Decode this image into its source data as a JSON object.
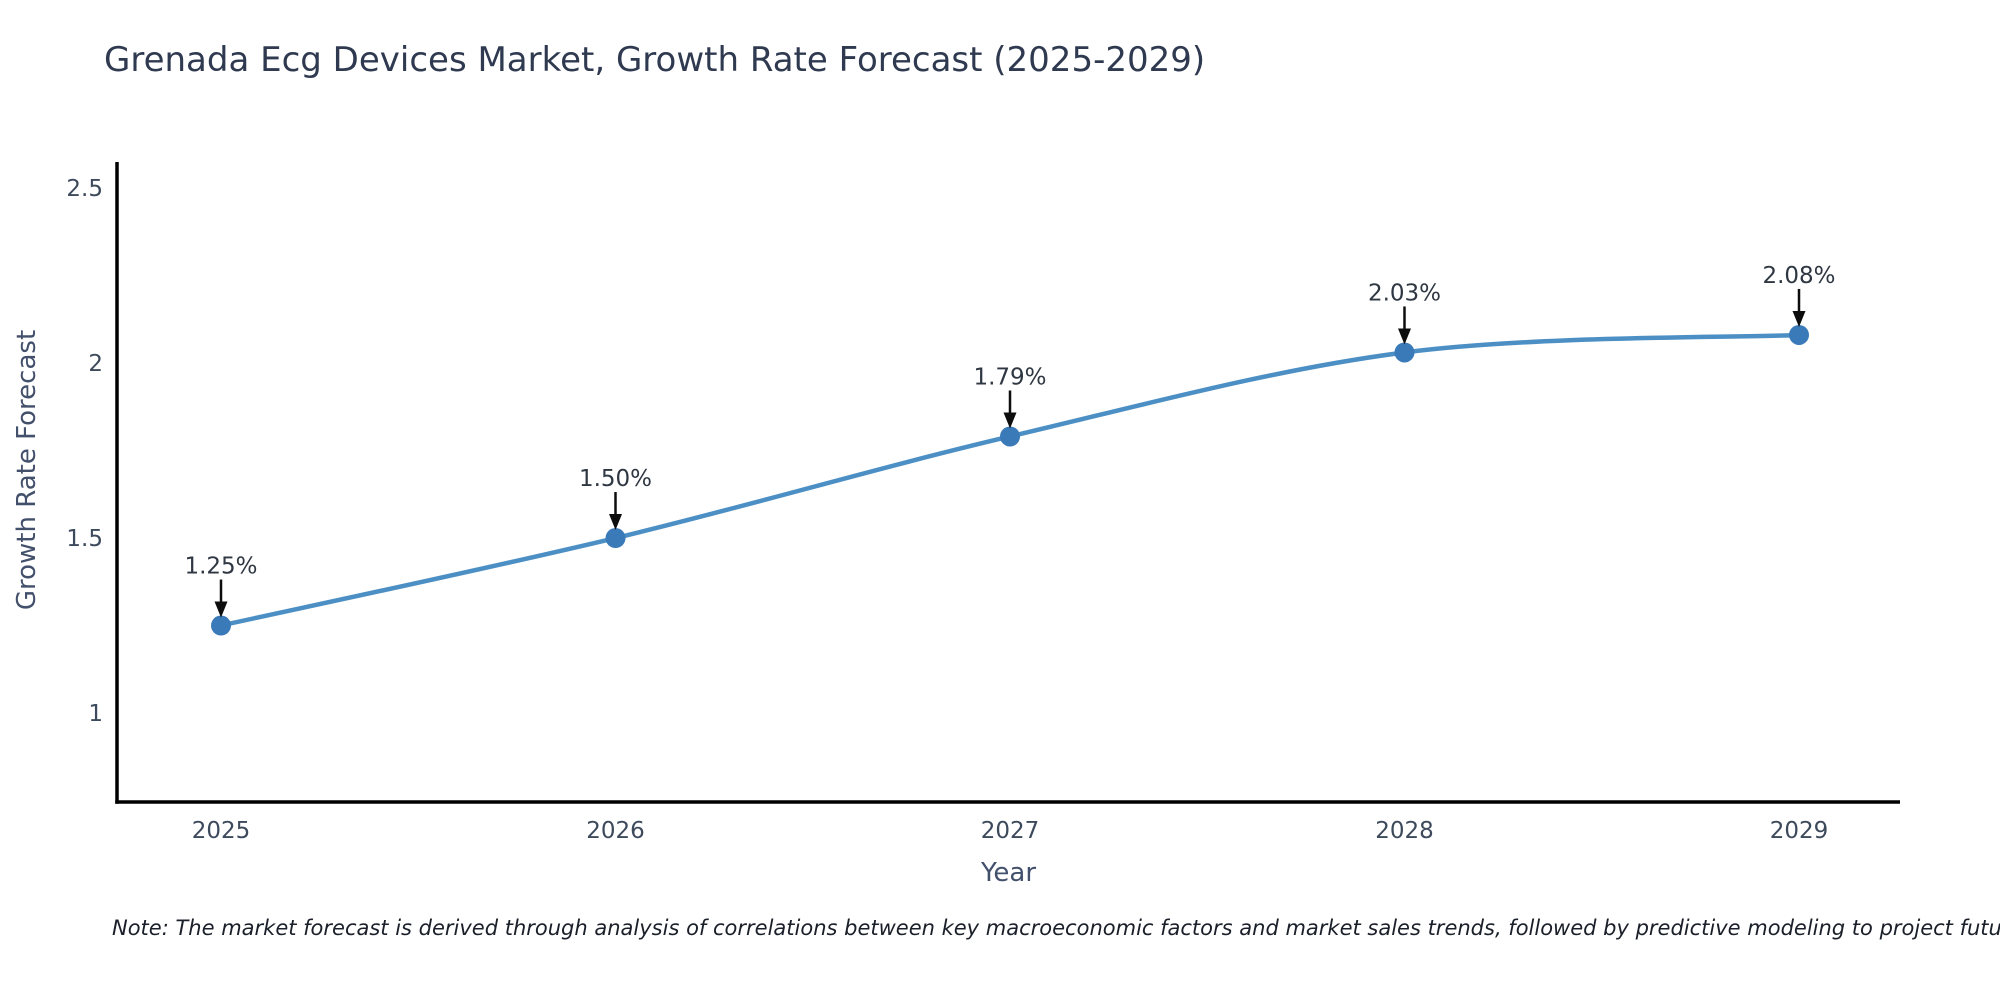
{
  "header": {
    "title": "Grenada Ecg Devices Market, Growth Rate Forecast (2025-2029)"
  },
  "footer": {
    "note": "Note: The market forecast is derived through analysis of correlations between key macroeconomic factors and market sales trends, followed by predictive modeling to project future sales"
  },
  "colors": {
    "line": "#4c8fc4",
    "marker": "#3a7ab8",
    "axis": "#000000",
    "arrow": "#0d0d0d",
    "title_text": "#2f3a50",
    "tick_text": "#3d4a5c",
    "axis_title_text": "#42506b",
    "annotation_text": "#2f3742",
    "note_text": "#1a1f29",
    "background": "#ffffff"
  },
  "chart_data": {
    "type": "line",
    "title": "Grenada Ecg Devices Market, Growth Rate Forecast (2025-2029)",
    "xlabel": "Year",
    "ylabel": "Growth Rate Forecast",
    "x": [
      2025,
      2026,
      2027,
      2028,
      2029
    ],
    "values": [
      1.25,
      1.5,
      1.79,
      2.03,
      2.08
    ],
    "point_labels": [
      "1.25%",
      "1.50%",
      "1.79%",
      "2.03%",
      "2.08%"
    ],
    "x_tick_labels": [
      "2025",
      "2026",
      "2027",
      "2028",
      "2029"
    ],
    "y_ticks": [
      1,
      1.5,
      2,
      2.5
    ],
    "y_tick_labels": [
      "1",
      "1.5",
      "2",
      "2.5"
    ],
    "ylim": [
      0.746,
      2.574
    ],
    "xlim": [
      2024.74,
      2029.26
    ],
    "grid": false,
    "legend_position": "none",
    "line_shape": "spline",
    "markers": true,
    "annotations_arrowed": true
  }
}
